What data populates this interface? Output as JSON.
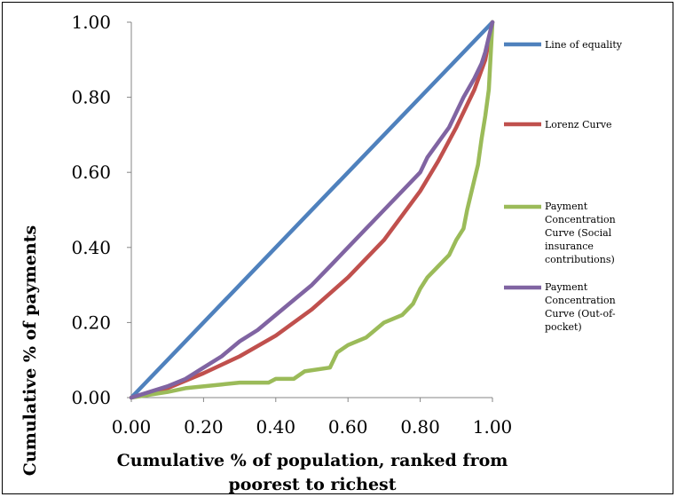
{
  "chart_data": {
    "type": "line",
    "xlabel": "Cumulative % of population, ranked from poorest to richest",
    "ylabel": "Cumulative % of payments",
    "xlim": [
      0,
      1
    ],
    "ylim": [
      0,
      1
    ],
    "x_ticks": [
      "0.00",
      "0.20",
      "0.40",
      "0.60",
      "0.80",
      "1.00"
    ],
    "y_ticks": [
      "0.00",
      "0.20",
      "0.40",
      "0.60",
      "0.80",
      "1.00"
    ],
    "grid": false,
    "legend_position": "right",
    "series": [
      {
        "name": "Line of equality",
        "color": "#4f81bd",
        "x": [
          0.0,
          1.0
        ],
        "y": [
          0.0,
          1.0
        ]
      },
      {
        "name": "Lorenz Curve",
        "color": "#c0504d",
        "x": [
          0.0,
          0.1,
          0.2,
          0.3,
          0.4,
          0.5,
          0.6,
          0.7,
          0.8,
          0.85,
          0.9,
          0.95,
          0.98,
          1.0
        ],
        "y": [
          0.0,
          0.025,
          0.065,
          0.11,
          0.165,
          0.235,
          0.32,
          0.42,
          0.55,
          0.63,
          0.72,
          0.82,
          0.9,
          1.0
        ]
      },
      {
        "name": "Payment Concentration Curve (Social insurance contributions)",
        "color": "#9bbb59",
        "x": [
          0.0,
          0.1,
          0.15,
          0.25,
          0.3,
          0.38,
          0.4,
          0.45,
          0.48,
          0.55,
          0.57,
          0.6,
          0.65,
          0.7,
          0.75,
          0.78,
          0.8,
          0.82,
          0.85,
          0.88,
          0.9,
          0.92,
          0.93,
          0.95,
          0.96,
          0.97,
          0.98,
          0.99,
          1.0
        ],
        "y": [
          0.0,
          0.015,
          0.025,
          0.035,
          0.04,
          0.04,
          0.05,
          0.05,
          0.07,
          0.08,
          0.12,
          0.14,
          0.16,
          0.2,
          0.22,
          0.25,
          0.29,
          0.32,
          0.35,
          0.38,
          0.42,
          0.45,
          0.5,
          0.58,
          0.62,
          0.69,
          0.75,
          0.82,
          1.0
        ]
      },
      {
        "name": "Payment Concentration Curve (Out-of-pocket)",
        "color": "#8064a2",
        "x": [
          0.0,
          0.05,
          0.1,
          0.15,
          0.2,
          0.25,
          0.3,
          0.35,
          0.4,
          0.45,
          0.5,
          0.55,
          0.6,
          0.65,
          0.7,
          0.75,
          0.8,
          0.82,
          0.85,
          0.88,
          0.9,
          0.92,
          0.95,
          0.97,
          0.98,
          0.99,
          1.0
        ],
        "y": [
          0.0,
          0.015,
          0.03,
          0.05,
          0.08,
          0.11,
          0.15,
          0.18,
          0.22,
          0.26,
          0.3,
          0.35,
          0.4,
          0.45,
          0.5,
          0.55,
          0.6,
          0.64,
          0.68,
          0.72,
          0.76,
          0.8,
          0.85,
          0.89,
          0.92,
          0.96,
          1.0
        ]
      }
    ]
  },
  "legend": {
    "items": [
      {
        "lines": [
          "Line of equality"
        ]
      },
      {
        "lines": [
          "Lorenz Curve"
        ]
      },
      {
        "lines": [
          "Payment",
          "Concentration",
          "Curve (Social",
          "insurance",
          "contributions)"
        ]
      },
      {
        "lines": [
          "Payment",
          "Concentration",
          "Curve (Out-of-",
          "pocket)"
        ]
      }
    ]
  }
}
